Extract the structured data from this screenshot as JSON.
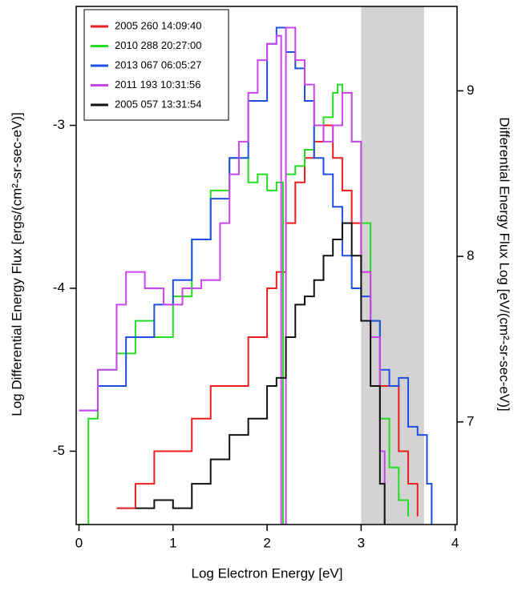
{
  "chart_data": {
    "type": "line",
    "step": true,
    "x_label": "Log Electron Energy [eV]",
    "y_label": "Log Differential Energy Flux [ergs/(cm²-sr-sec-eV)]",
    "y2_label": "Differential Energy Flux  Log [eV/(cm²-sr-sec-eV)]",
    "xlim": [
      -0.03,
      4.02
    ],
    "xticks": [
      0,
      1,
      2,
      3,
      4
    ],
    "ylim": [
      -5.45,
      -2.27
    ],
    "yticks": [
      -5,
      -4,
      -3
    ],
    "y2lim": [
      6.38,
      9.51
    ],
    "y2ticks": [
      7,
      8,
      9
    ],
    "shaded_region": [
      3,
      3.67
    ],
    "shaded_color": "#d3d3d3",
    "legend": "upper left",
    "series": [
      {
        "name": "2005 260 14:09:40",
        "color": "#ee1c1c",
        "x": [
          0.4,
          0.6,
          0.8,
          1.0,
          1.2,
          1.4,
          1.6,
          1.8,
          2.0,
          2.1,
          2.2,
          2.3,
          2.4,
          2.5,
          2.6,
          2.7,
          2.8,
          2.9,
          3.0,
          3.1,
          3.2,
          3.3,
          3.4,
          3.5,
          3.6
        ],
        "values": [
          -5.35,
          -5.2,
          -5.0,
          -5.0,
          -4.8,
          -4.6,
          -4.6,
          -4.3,
          -4.0,
          -3.9,
          -3.6,
          -3.35,
          -3.2,
          -3.1,
          -3.0,
          -3.2,
          -3.4,
          -3.6,
          -3.9,
          -4.3,
          -4.6,
          -4.6,
          -5.0,
          -5.2,
          -5.4
        ]
      },
      {
        "name": "2010 288 20:27:00",
        "color": "#22dd22",
        "x": [
          0.0,
          0.1,
          0.2,
          0.4,
          0.6,
          0.8,
          1.0,
          1.2,
          1.4,
          1.6,
          1.7,
          1.8,
          1.9,
          2.0,
          2.1,
          2.17,
          2.2,
          2.3,
          2.4,
          2.5,
          2.6,
          2.7,
          2.75,
          2.8,
          2.9,
          3.0,
          3.1,
          3.2,
          3.3,
          3.4,
          3.5
        ],
        "values": [
          -5.45,
          -4.8,
          -4.5,
          -4.4,
          -4.2,
          -4.3,
          -4.05,
          -3.7,
          -3.4,
          -3.2,
          -3.2,
          -3.35,
          -3.3,
          -3.4,
          -3.35,
          -5.45,
          -3.3,
          -3.25,
          -3.15,
          -3.0,
          -2.95,
          -2.8,
          -2.75,
          -2.8,
          -3.1,
          -3.6,
          -4.2,
          -4.8,
          -5.1,
          -5.3,
          -5.4
        ]
      },
      {
        "name": "2013 067 06:05:27",
        "color": "#1f4fe0",
        "x": [
          0.0,
          0.2,
          0.5,
          0.8,
          1.0,
          1.2,
          1.4,
          1.6,
          1.8,
          2.0,
          2.1,
          2.2,
          2.3,
          2.4,
          2.5,
          2.6,
          2.7,
          2.8,
          2.9,
          3.0,
          3.1,
          3.2,
          3.3,
          3.4,
          3.5,
          3.6,
          3.7,
          3.75
        ],
        "values": [
          -4.75,
          -4.6,
          -4.3,
          -4.1,
          -3.95,
          -3.7,
          -3.45,
          -3.2,
          -2.85,
          -2.5,
          -2.4,
          -2.55,
          -2.65,
          -2.85,
          -3.2,
          -3.3,
          -3.5,
          -3.8,
          -4.0,
          -4.05,
          -4.2,
          -4.5,
          -4.6,
          -4.55,
          -4.85,
          -4.9,
          -5.2,
          -5.45
        ]
      },
      {
        "name": "2011 193 10:31:56",
        "color": "#cc44ee",
        "x": [
          0.0,
          0.2,
          0.4,
          0.5,
          0.7,
          0.9,
          1.1,
          1.3,
          1.5,
          1.6,
          1.7,
          1.8,
          1.9,
          2.0,
          2.1,
          2.15,
          2.2,
          2.3,
          2.4,
          2.5,
          2.6,
          2.7,
          2.8,
          2.9,
          3.0,
          3.1,
          3.2,
          3.25
        ],
        "values": [
          -4.75,
          -4.5,
          -4.1,
          -3.9,
          -4.0,
          -4.1,
          -4.0,
          -3.95,
          -3.6,
          -3.3,
          -3.1,
          -2.8,
          -2.6,
          -2.5,
          -2.45,
          -5.45,
          -2.4,
          -2.6,
          -2.75,
          -3.0,
          -3.1,
          -3.0,
          -2.8,
          -3.1,
          -3.9,
          -4.3,
          -5.0,
          -5.45
        ]
      },
      {
        "name": "2005 057 13:31:54",
        "color": "#111111",
        "x": [
          0.6,
          0.8,
          1.0,
          1.2,
          1.4,
          1.6,
          1.8,
          2.0,
          2.1,
          2.2,
          2.3,
          2.4,
          2.5,
          2.6,
          2.7,
          2.8,
          2.9,
          3.0,
          3.1,
          3.2,
          3.25
        ],
        "values": [
          -5.35,
          -5.3,
          -5.35,
          -5.2,
          -5.05,
          -4.9,
          -4.8,
          -4.6,
          -4.55,
          -4.3,
          -4.1,
          -4.05,
          -3.95,
          -3.8,
          -3.7,
          -3.6,
          -3.8,
          -4.2,
          -4.6,
          -5.2,
          -5.45
        ]
      }
    ]
  }
}
